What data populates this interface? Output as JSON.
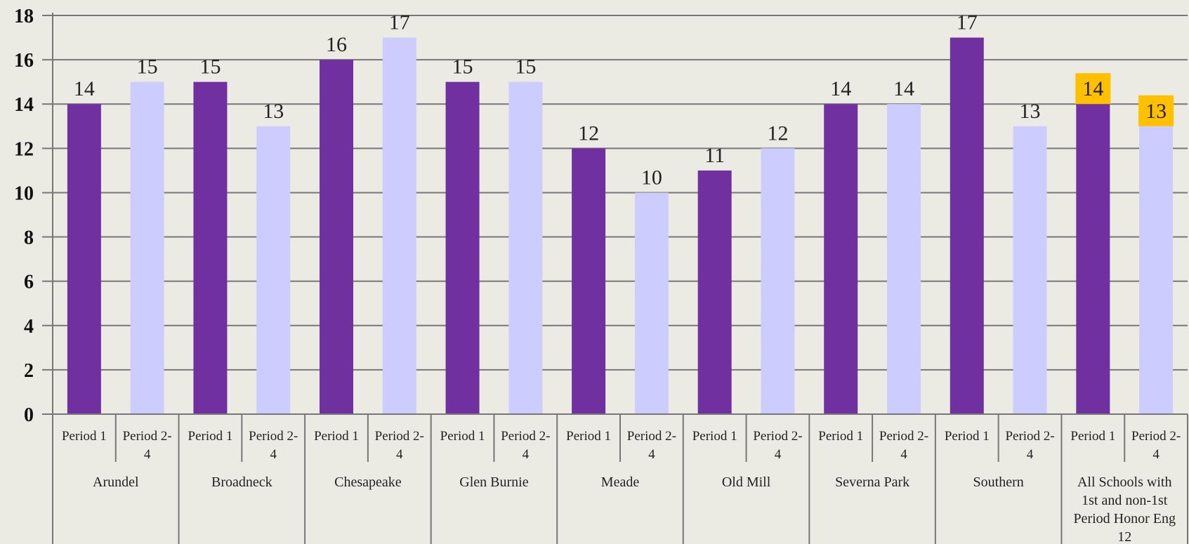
{
  "chart_data": {
    "type": "bar",
    "title": "",
    "xlabel": "",
    "ylabel": "",
    "ylim": [
      0,
      18
    ],
    "y_ticks": [
      0,
      2,
      4,
      6,
      8,
      10,
      12,
      14,
      16,
      18
    ],
    "grid": true,
    "legend": "none",
    "groups": [
      {
        "name": "Arundel",
        "lines": [
          "Arundel"
        ],
        "bars": [
          {
            "label": [
              "Period 1"
            ],
            "value": 14,
            "kind": "p1"
          },
          {
            "label": [
              "Period 2-",
              "4"
            ],
            "value": 15,
            "kind": "p24"
          }
        ]
      },
      {
        "name": "Broadneck",
        "lines": [
          "Broadneck"
        ],
        "bars": [
          {
            "label": [
              "Period 1"
            ],
            "value": 15,
            "kind": "p1"
          },
          {
            "label": [
              "Period 2-",
              "4"
            ],
            "value": 13,
            "kind": "p24"
          }
        ]
      },
      {
        "name": "Chesapeake",
        "lines": [
          "Chesapeake"
        ],
        "bars": [
          {
            "label": [
              "Period 1"
            ],
            "value": 16,
            "kind": "p1"
          },
          {
            "label": [
              "Period 2-",
              "4"
            ],
            "value": 17,
            "kind": "p24"
          }
        ]
      },
      {
        "name": "Glen Burnie",
        "lines": [
          "Glen Burnie"
        ],
        "bars": [
          {
            "label": [
              "Period 1"
            ],
            "value": 15,
            "kind": "p1"
          },
          {
            "label": [
              "Period 2-",
              "4"
            ],
            "value": 15,
            "kind": "p24"
          }
        ]
      },
      {
        "name": "Meade",
        "lines": [
          "Meade"
        ],
        "bars": [
          {
            "label": [
              "Period 1"
            ],
            "value": 12,
            "kind": "p1"
          },
          {
            "label": [
              "Period 2-",
              "4"
            ],
            "value": 10,
            "kind": "p24"
          }
        ]
      },
      {
        "name": "Old Mill",
        "lines": [
          "Old Mill"
        ],
        "bars": [
          {
            "label": [
              "Period 1"
            ],
            "value": 11,
            "kind": "p1"
          },
          {
            "label": [
              "Period 2-",
              "4"
            ],
            "value": 12,
            "kind": "p24"
          }
        ]
      },
      {
        "name": "Severna Park",
        "lines": [
          "Severna Park"
        ],
        "bars": [
          {
            "label": [
              "Period 1"
            ],
            "value": 14,
            "kind": "p1"
          },
          {
            "label": [
              "Period 2-",
              "4"
            ],
            "value": 14,
            "kind": "p24"
          }
        ]
      },
      {
        "name": "Southern",
        "lines": [
          "Southern"
        ],
        "bars": [
          {
            "label": [
              "Period 1"
            ],
            "value": 17,
            "kind": "p1"
          },
          {
            "label": [
              "Period 2-",
              "4"
            ],
            "value": 13,
            "kind": "p24"
          }
        ]
      },
      {
        "name": "All Schools with 1st and non-1st Period Honor Eng 12",
        "lines": [
          "All Schools with",
          "1st and non-1st",
          "Period Honor Eng",
          "12"
        ],
        "highlight": true,
        "bars": [
          {
            "label": [
              "Period 1"
            ],
            "value": 14,
            "kind": "p1"
          },
          {
            "label": [
              "Period 2-",
              "4"
            ],
            "value": 13,
            "kind": "p24"
          }
        ]
      }
    ]
  },
  "colors": {
    "background": "#ebebe3",
    "period_1": "#7030a0",
    "period_2_4": "#ccccff",
    "gridline": "#777777",
    "highlight_label": "#ffc000"
  }
}
